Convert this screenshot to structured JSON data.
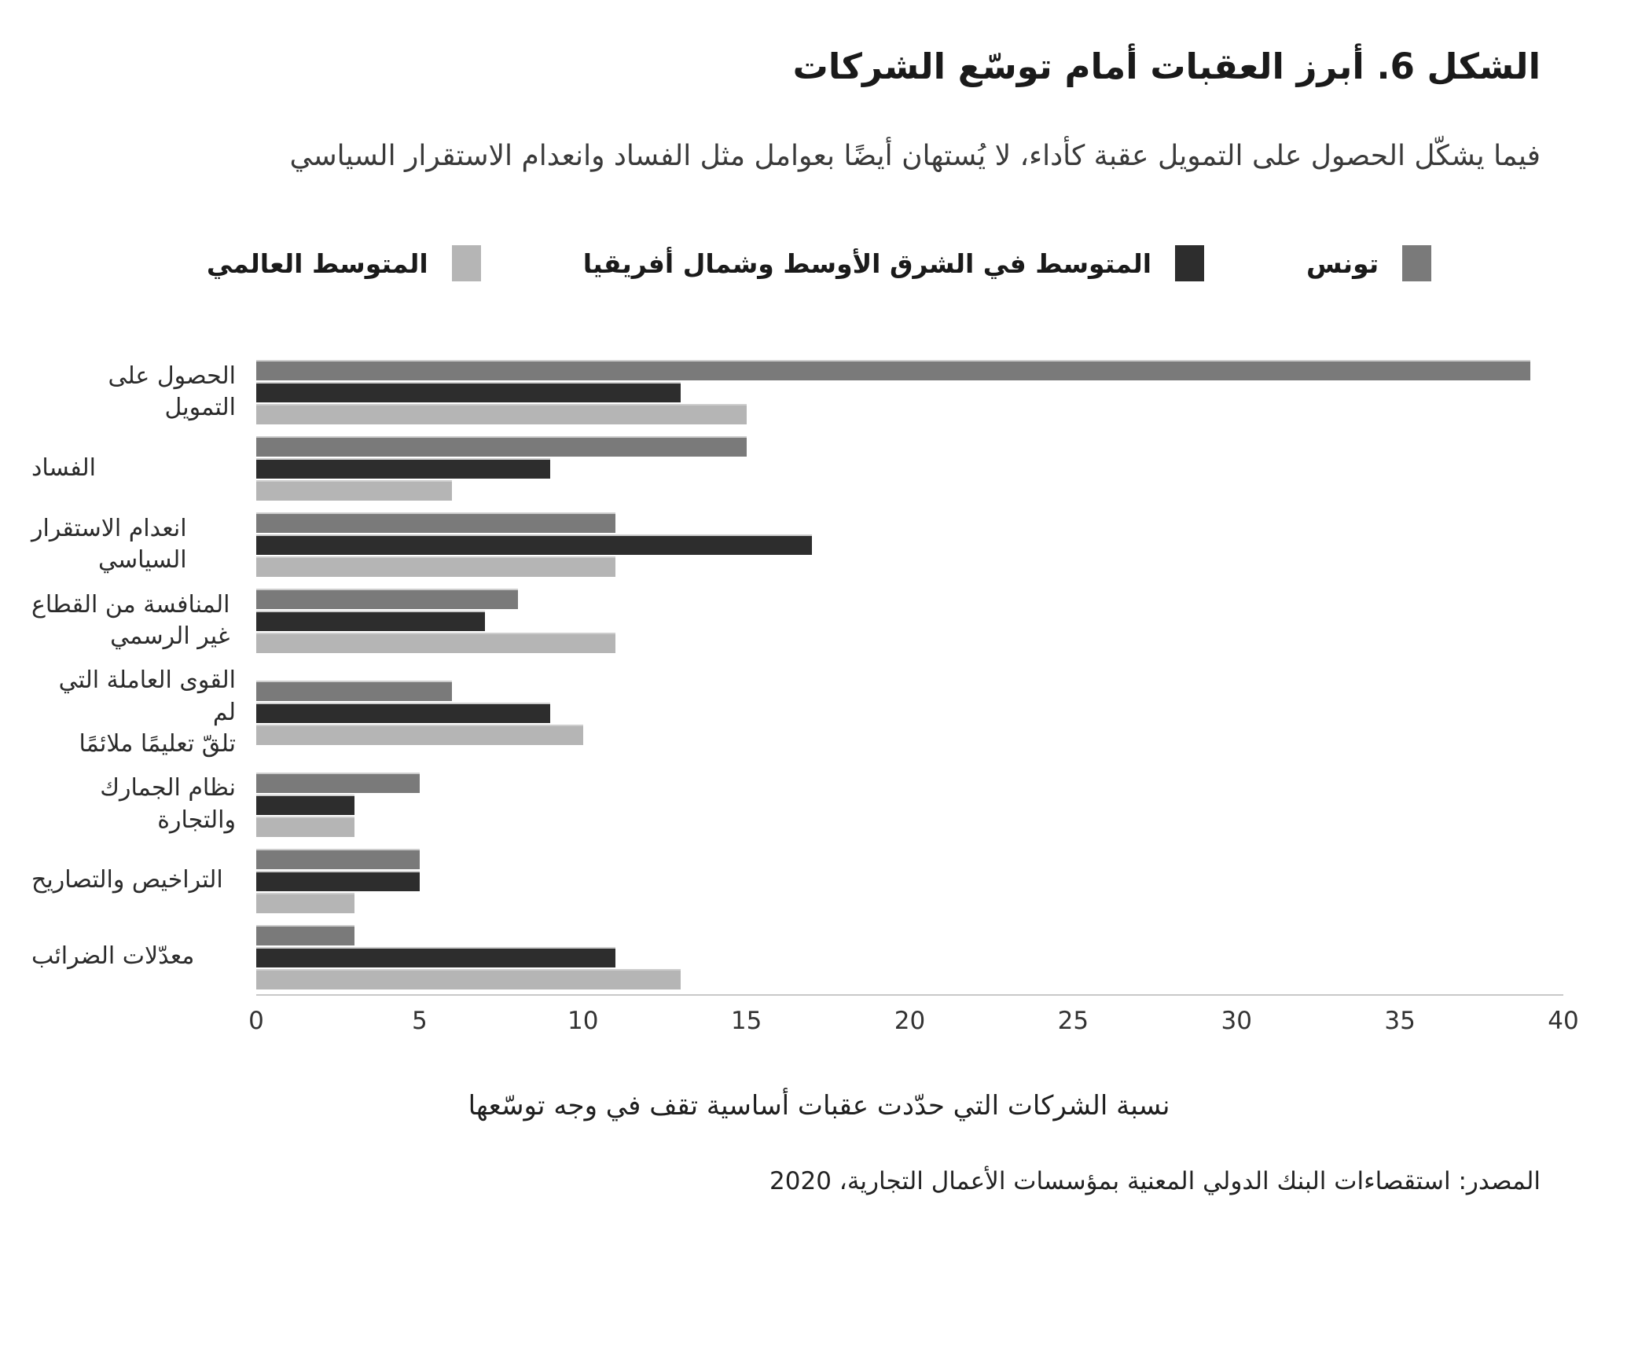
{
  "header": {
    "title": "الشكل 6. أبرز العقبات أمام توسّع الشركات",
    "subtitle": "فيما يشكّل الحصول على التمويل عقبة كأداء، لا يُستهان أيضًا بعوامل مثل الفساد وانعدام الاستقرار السياسي"
  },
  "colors": {
    "tunisia_bar": "#7a7a7a",
    "mena_bar": "#2d2d2d",
    "world_bar": "#b5b5b5",
    "axis_line": "#c8c8c8",
    "bar_top_edge": "#cdcdcd"
  },
  "chart_data": {
    "type": "bar",
    "orientation": "horizontal",
    "title": "الشكل 6. أبرز العقبات أمام توسّع الشركات",
    "xlabel": "نسبة الشركات التي حدّدت عقبات أساسية تقف في وجه توسّعها",
    "ylabel": "",
    "xlim": [
      0,
      40
    ],
    "xticks": [
      0,
      5,
      10,
      15,
      20,
      25,
      30,
      35,
      40
    ],
    "grid": false,
    "legend_position": "top",
    "categories": [
      "الحصول على التمويل",
      "الفساد",
      "انعدام الاستقرار\nالسياسي",
      "المنافسة من القطاع\nغير الرسمي",
      "القوى العاملة التي لم\nتلقّ تعليمًا ملائمًا",
      "نظام الجمارك والتجارة",
      "التراخيص والتصاريح",
      "معدّلات الضرائب"
    ],
    "series": [
      {
        "name": "تونس",
        "color": "#7a7a7a",
        "values": [
          39,
          15,
          11,
          8,
          6,
          5,
          5,
          3
        ]
      },
      {
        "name": "المتوسط في الشرق الأوسط وشمال أفريقيا",
        "color": "#2d2d2d",
        "values": [
          13,
          9,
          17,
          7,
          9,
          3,
          5,
          11
        ]
      },
      {
        "name": "المتوسط العالمي",
        "color": "#b5b5b5",
        "values": [
          15,
          6,
          11,
          11,
          10,
          3,
          3,
          13
        ]
      }
    ]
  },
  "footer": {
    "source": "المصدر: استقصاءات البنك الدولي المعنية بمؤسسات الأعمال التجارية، 2020"
  }
}
